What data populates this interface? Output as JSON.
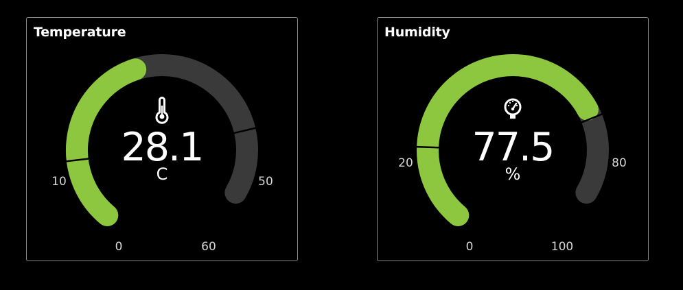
{
  "colors": {
    "accent": "#8dc63f",
    "track": "#3a3a3a",
    "background": "#000000",
    "border": "#8a8a8a",
    "text": "#ffffff",
    "tick_text": "#d6d6d6"
  },
  "temperature": {
    "title": "Temperature",
    "icon": "thermometer-icon",
    "value": "28.1",
    "unit": "C",
    "min": 0,
    "max": 60,
    "current": 28.1,
    "low_threshold": 10,
    "high_threshold": 50,
    "labels": {
      "min": "0",
      "max": "60",
      "low": "10",
      "high": "50"
    }
  },
  "humidity": {
    "title": "Humidity",
    "icon": "gauge-icon",
    "value": "77.5",
    "unit": "%",
    "min": 0,
    "max": 100,
    "current": 77.5,
    "low_threshold": 20,
    "high_threshold": 80,
    "labels": {
      "min": "0",
      "max": "100",
      "low": "20",
      "high": "80"
    }
  }
}
